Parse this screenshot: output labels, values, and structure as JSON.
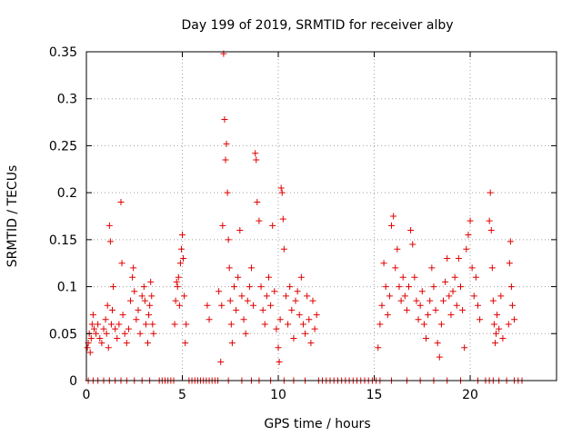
{
  "colors": {
    "series": "#e00000",
    "axis": "#000000",
    "grid": "#a0a0a0"
  },
  "chart_data": {
    "type": "scatter",
    "title": "Day 199 of 2019, SRMTID for receiver alby",
    "xlabel": "GPS time / hours",
    "ylabel": "SRMTID / TECUs",
    "xlim": [
      0,
      24.5
    ],
    "ylim": [
      0,
      0.35
    ],
    "x_ticks": [
      0,
      5,
      10,
      15,
      20
    ],
    "x_tick_labels": [
      "0",
      "5",
      "10",
      "15",
      "20"
    ],
    "y_ticks": [
      0,
      0.05,
      0.1,
      0.15,
      0.2,
      0.25,
      0.3,
      0.35
    ],
    "y_tick_labels": [
      "0",
      "0.05",
      "0.1",
      "0.15",
      "0.2",
      "0.25",
      "0.3",
      "0.35"
    ],
    "grid": true,
    "marker": "+",
    "series": [
      {
        "name": "SRMTID",
        "points": [
          [
            0.05,
            0.035
          ],
          [
            0.1,
            0.04
          ],
          [
            0.15,
            0.05
          ],
          [
            0.2,
            0.03
          ],
          [
            0.25,
            0.045
          ],
          [
            0.3,
            0.06
          ],
          [
            0.35,
            0.07
          ],
          [
            0.4,
            0.055
          ],
          [
            0.5,
            0.05
          ],
          [
            0.6,
            0.06
          ],
          [
            0.7,
            0.045
          ],
          [
            0.8,
            0.04
          ],
          [
            0.9,
            0.055
          ],
          [
            1.0,
            0.065
          ],
          [
            1.05,
            0.05
          ],
          [
            1.1,
            0.08
          ],
          [
            1.15,
            0.035
          ],
          [
            1.2,
            0.165
          ],
          [
            1.25,
            0.148
          ],
          [
            1.3,
            0.06
          ],
          [
            1.35,
            0.075
          ],
          [
            1.4,
            0.1
          ],
          [
            1.5,
            0.055
          ],
          [
            1.6,
            0.045
          ],
          [
            1.7,
            0.06
          ],
          [
            1.8,
            0.19
          ],
          [
            1.85,
            0.125
          ],
          [
            1.9,
            0.07
          ],
          [
            2.0,
            0.05
          ],
          [
            2.1,
            0.04
          ],
          [
            2.2,
            0.055
          ],
          [
            2.3,
            0.085
          ],
          [
            2.4,
            0.11
          ],
          [
            2.45,
            0.12
          ],
          [
            2.5,
            0.095
          ],
          [
            2.6,
            0.065
          ],
          [
            2.7,
            0.075
          ],
          [
            2.8,
            0.05
          ],
          [
            2.9,
            0.09
          ],
          [
            3.0,
            0.1
          ],
          [
            3.05,
            0.085
          ],
          [
            3.1,
            0.06
          ],
          [
            3.2,
            0.04
          ],
          [
            3.25,
            0.07
          ],
          [
            3.3,
            0.08
          ],
          [
            3.35,
            0.105
          ],
          [
            3.4,
            0.09
          ],
          [
            3.45,
            0.06
          ],
          [
            3.5,
            0.05
          ],
          [
            4.6,
            0.06
          ],
          [
            4.65,
            0.085
          ],
          [
            4.7,
            0.105
          ],
          [
            4.75,
            0.1
          ],
          [
            4.8,
            0.11
          ],
          [
            4.85,
            0.08
          ],
          [
            4.9,
            0.125
          ],
          [
            4.95,
            0.14
          ],
          [
            5.0,
            0.155
          ],
          [
            5.05,
            0.13
          ],
          [
            5.1,
            0.09
          ],
          [
            5.15,
            0.04
          ],
          [
            5.2,
            0.06
          ],
          [
            6.3,
            0.08
          ],
          [
            6.4,
            0.065
          ],
          [
            6.9,
            0.095
          ],
          [
            7.0,
            0.02
          ],
          [
            7.05,
            0.08
          ],
          [
            7.1,
            0.165
          ],
          [
            7.15,
            0.348
          ],
          [
            7.2,
            0.278
          ],
          [
            7.25,
            0.235
          ],
          [
            7.3,
            0.252
          ],
          [
            7.35,
            0.2
          ],
          [
            7.4,
            0.15
          ],
          [
            7.45,
            0.12
          ],
          [
            7.5,
            0.085
          ],
          [
            7.55,
            0.06
          ],
          [
            7.6,
            0.04
          ],
          [
            7.7,
            0.1
          ],
          [
            7.8,
            0.075
          ],
          [
            7.9,
            0.11
          ],
          [
            8.0,
            0.16
          ],
          [
            8.1,
            0.09
          ],
          [
            8.2,
            0.065
          ],
          [
            8.3,
            0.05
          ],
          [
            8.4,
            0.085
          ],
          [
            8.5,
            0.1
          ],
          [
            8.6,
            0.12
          ],
          [
            8.7,
            0.08
          ],
          [
            8.8,
            0.242
          ],
          [
            8.85,
            0.235
          ],
          [
            8.9,
            0.19
          ],
          [
            9.0,
            0.17
          ],
          [
            9.1,
            0.1
          ],
          [
            9.2,
            0.075
          ],
          [
            9.3,
            0.06
          ],
          [
            9.4,
            0.09
          ],
          [
            9.5,
            0.11
          ],
          [
            9.6,
            0.08
          ],
          [
            9.7,
            0.165
          ],
          [
            9.8,
            0.095
          ],
          [
            9.9,
            0.055
          ],
          [
            10.0,
            0.035
          ],
          [
            10.05,
            0.02
          ],
          [
            10.1,
            0.065
          ],
          [
            10.15,
            0.205
          ],
          [
            10.2,
            0.2
          ],
          [
            10.25,
            0.172
          ],
          [
            10.3,
            0.14
          ],
          [
            10.4,
            0.09
          ],
          [
            10.5,
            0.06
          ],
          [
            10.6,
            0.1
          ],
          [
            10.7,
            0.075
          ],
          [
            10.8,
            0.045
          ],
          [
            10.9,
            0.085
          ],
          [
            11.0,
            0.095
          ],
          [
            11.1,
            0.07
          ],
          [
            11.2,
            0.11
          ],
          [
            11.3,
            0.06
          ],
          [
            11.4,
            0.05
          ],
          [
            11.5,
            0.09
          ],
          [
            11.6,
            0.065
          ],
          [
            11.7,
            0.04
          ],
          [
            11.8,
            0.085
          ],
          [
            11.9,
            0.055
          ],
          [
            12.0,
            0.07
          ],
          [
            15.2,
            0.035
          ],
          [
            15.3,
            0.06
          ],
          [
            15.4,
            0.08
          ],
          [
            15.5,
            0.125
          ],
          [
            15.6,
            0.1
          ],
          [
            15.7,
            0.07
          ],
          [
            15.8,
            0.09
          ],
          [
            15.9,
            0.165
          ],
          [
            16.0,
            0.175
          ],
          [
            16.1,
            0.12
          ],
          [
            16.2,
            0.14
          ],
          [
            16.3,
            0.1
          ],
          [
            16.4,
            0.085
          ],
          [
            16.5,
            0.11
          ],
          [
            16.6,
            0.09
          ],
          [
            16.7,
            0.075
          ],
          [
            16.8,
            0.1
          ],
          [
            16.9,
            0.16
          ],
          [
            17.0,
            0.145
          ],
          [
            17.1,
            0.11
          ],
          [
            17.2,
            0.085
          ],
          [
            17.3,
            0.065
          ],
          [
            17.4,
            0.08
          ],
          [
            17.5,
            0.095
          ],
          [
            17.6,
            0.06
          ],
          [
            17.7,
            0.045
          ],
          [
            17.8,
            0.07
          ],
          [
            17.9,
            0.085
          ],
          [
            18.0,
            0.12
          ],
          [
            18.1,
            0.1
          ],
          [
            18.2,
            0.075
          ],
          [
            18.3,
            0.04
          ],
          [
            18.4,
            0.025
          ],
          [
            18.5,
            0.06
          ],
          [
            18.6,
            0.085
          ],
          [
            18.7,
            0.105
          ],
          [
            18.8,
            0.13
          ],
          [
            18.9,
            0.09
          ],
          [
            19.0,
            0.07
          ],
          [
            19.1,
            0.095
          ],
          [
            19.2,
            0.11
          ],
          [
            19.3,
            0.08
          ],
          [
            19.4,
            0.13
          ],
          [
            19.5,
            0.1
          ],
          [
            19.6,
            0.075
          ],
          [
            19.7,
            0.035
          ],
          [
            19.8,
            0.14
          ],
          [
            19.9,
            0.155
          ],
          [
            20.0,
            0.17
          ],
          [
            20.1,
            0.12
          ],
          [
            20.2,
            0.09
          ],
          [
            20.3,
            0.11
          ],
          [
            20.4,
            0.08
          ],
          [
            20.5,
            0.065
          ],
          [
            21.0,
            0.17
          ],
          [
            21.05,
            0.2
          ],
          [
            21.1,
            0.16
          ],
          [
            21.15,
            0.12
          ],
          [
            21.2,
            0.085
          ],
          [
            21.25,
            0.06
          ],
          [
            21.3,
            0.04
          ],
          [
            21.35,
            0.05
          ],
          [
            21.4,
            0.07
          ],
          [
            21.5,
            0.055
          ],
          [
            21.6,
            0.09
          ],
          [
            21.7,
            0.045
          ],
          [
            22.0,
            0.06
          ],
          [
            22.05,
            0.125
          ],
          [
            22.1,
            0.148
          ],
          [
            22.15,
            0.1
          ],
          [
            22.2,
            0.08
          ],
          [
            22.3,
            0.065
          ],
          [
            0.1,
            0.0
          ],
          [
            0.35,
            0.0
          ],
          [
            0.6,
            0.0
          ],
          [
            0.9,
            0.0
          ],
          [
            1.2,
            0.0
          ],
          [
            1.5,
            0.0
          ],
          [
            1.8,
            0.0
          ],
          [
            2.1,
            0.0
          ],
          [
            2.5,
            0.0
          ],
          [
            2.9,
            0.0
          ],
          [
            3.3,
            0.0
          ],
          [
            3.8,
            0.0
          ],
          [
            3.95,
            0.0
          ],
          [
            4.1,
            0.0
          ],
          [
            4.25,
            0.0
          ],
          [
            4.4,
            0.0
          ],
          [
            4.55,
            0.0
          ],
          [
            5.35,
            0.0
          ],
          [
            5.5,
            0.0
          ],
          [
            5.65,
            0.0
          ],
          [
            5.8,
            0.0
          ],
          [
            5.95,
            0.0
          ],
          [
            6.1,
            0.0
          ],
          [
            6.25,
            0.0
          ],
          [
            6.4,
            0.0
          ],
          [
            6.55,
            0.0
          ],
          [
            6.7,
            0.0
          ],
          [
            6.85,
            0.0
          ],
          [
            7.4,
            0.0
          ],
          [
            8.1,
            0.0
          ],
          [
            8.6,
            0.0
          ],
          [
            9.0,
            0.0
          ],
          [
            9.6,
            0.0
          ],
          [
            10.3,
            0.0
          ],
          [
            10.8,
            0.0
          ],
          [
            11.4,
            0.0
          ],
          [
            12.1,
            0.0
          ],
          [
            12.3,
            0.0
          ],
          [
            12.5,
            0.0
          ],
          [
            12.7,
            0.0
          ],
          [
            12.9,
            0.0
          ],
          [
            13.1,
            0.0
          ],
          [
            13.3,
            0.0
          ],
          [
            13.5,
            0.0
          ],
          [
            13.7,
            0.0
          ],
          [
            13.9,
            0.0
          ],
          [
            14.1,
            0.0
          ],
          [
            14.3,
            0.0
          ],
          [
            14.5,
            0.0
          ],
          [
            14.7,
            0.0
          ],
          [
            14.9,
            0.0
          ],
          [
            15.1,
            0.0
          ],
          [
            15.3,
            0.0
          ],
          [
            15.9,
            0.0
          ],
          [
            16.7,
            0.0
          ],
          [
            17.4,
            0.0
          ],
          [
            18.1,
            0.0
          ],
          [
            18.8,
            0.0
          ],
          [
            19.5,
            0.0
          ],
          [
            20.4,
            0.0
          ],
          [
            20.8,
            0.0
          ],
          [
            21.0,
            0.0
          ],
          [
            21.2,
            0.0
          ],
          [
            21.5,
            0.0
          ],
          [
            21.9,
            0.0
          ],
          [
            22.3,
            0.0
          ],
          [
            22.5,
            0.0
          ],
          [
            22.7,
            0.0
          ]
        ]
      }
    ]
  }
}
